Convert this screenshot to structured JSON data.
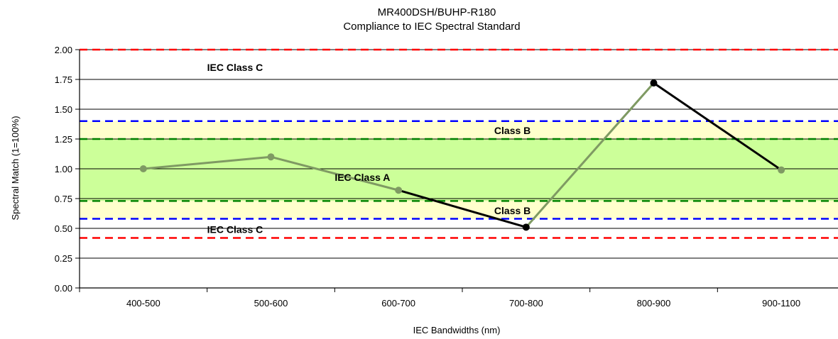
{
  "chart_data": {
    "type": "line",
    "title": "MR400DSH/BUHP-R180",
    "subtitle": "Compliance to IEC Spectral Standard",
    "xlabel": "IEC Bandwidths (nm)",
    "ylabel": "Spectral Match (1=100%)",
    "categories": [
      "400-500",
      "500-600",
      "600-700",
      "700-800",
      "800-900",
      "900-1100"
    ],
    "ylim": [
      0,
      2
    ],
    "yticks": [
      "0.00",
      "0.25",
      "0.50",
      "0.75",
      "1.00",
      "1.25",
      "1.50",
      "1.75",
      "2.00"
    ],
    "ytick_values": [
      0,
      0.25,
      0.5,
      0.75,
      1.0,
      1.25,
      1.5,
      1.75,
      2.0
    ],
    "grid": true,
    "series": [
      {
        "values": [
          1.0,
          1.1,
          0.82,
          0.51,
          1.72,
          0.99
        ],
        "point_colors": [
          "#7f9a63",
          "#7f9a63",
          "#7f9a63",
          "#000000",
          "#000000",
          "#7f9a63"
        ],
        "segment_colors": [
          "#7f9a63",
          "#7f9a63",
          "#000000",
          "#7f9a63",
          "#000000"
        ]
      }
    ],
    "bands": [
      {
        "from": 0.58,
        "to": 1.4,
        "color": "#ffffcc"
      },
      {
        "from": 0.73,
        "to": 1.25,
        "color": "#ccff99"
      }
    ],
    "threshold_lines": [
      {
        "value": 2.0,
        "color": "#ff0000"
      },
      {
        "value": 1.4,
        "color": "#0000ff"
      },
      {
        "value": 1.25,
        "color": "#008000"
      },
      {
        "value": 0.73,
        "color": "#008000"
      },
      {
        "value": 0.58,
        "color": "#0000ff"
      },
      {
        "value": 0.42,
        "color": "#ff0000"
      }
    ],
    "annotations": [
      {
        "text": "IEC Class C",
        "x": 1.0,
        "y": 1.85
      },
      {
        "text": "Class B",
        "x": 3.25,
        "y": 1.32
      },
      {
        "text": "IEC Class A",
        "x": 2.0,
        "y": 0.93
      },
      {
        "text": "Class B",
        "x": 3.25,
        "y": 0.65
      },
      {
        "text": "IEC Class C",
        "x": 1.0,
        "y": 0.49
      }
    ]
  }
}
